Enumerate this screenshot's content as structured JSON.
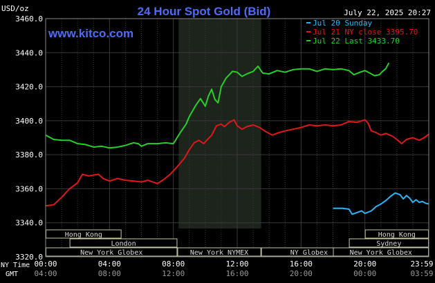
{
  "title": "24 Hour Spot Gold (Bid)",
  "timestamp": "July 22, 2025 20:27",
  "site": "www.kitco.com",
  "ylabel": "USD/oz",
  "ny_time_label": "NY Time",
  "gmt_label": "GMT",
  "colors": {
    "background": "#000000",
    "grid": "#3a3a3a",
    "text": "#ffffff",
    "title": "#4f6cf5",
    "site": "#4f6cf5",
    "session_shade": "#1c241c",
    "market_box_fill": "#000000",
    "market_box_stroke": "#c8c8a0",
    "market_text": "#d8d8d8"
  },
  "markets": [
    {
      "name": "Hong Kong",
      "row": 0
    },
    {
      "name": "London",
      "row": 1
    },
    {
      "name": "New York Globex",
      "row": 2
    },
    {
      "name": "New York NYMEX",
      "row": 2
    },
    {
      "name": "NY Globex",
      "row": 2
    },
    {
      "name": "Hong Kong",
      "row": 0
    },
    {
      "name": "Sydney",
      "row": 1
    },
    {
      "name": "New York Globex",
      "row": 2
    }
  ],
  "chart_data": {
    "type": "line",
    "title": "24 Hour Spot Gold (Bid)",
    "ylabel": "USD/oz",
    "ylim": [
      3320,
      3460
    ],
    "yticks": [
      "3460.0",
      "3440.0",
      "3420.0",
      "3400.0",
      "3380.0",
      "3360.0",
      "3340.0",
      "3320.0"
    ],
    "xlim": [
      0,
      24
    ],
    "xticks_ny": [
      "00:00",
      "04:00",
      "08:00",
      "12:00",
      "16:00",
      "20:00",
      "23:59"
    ],
    "xticks_gmt": [
      "04:00",
      "08:00",
      "12:00",
      "16:00",
      "20:00",
      "00:00",
      "03:59"
    ],
    "legend_position": "top-right",
    "grid": true,
    "series": [
      {
        "name": "Jul 20 Sunday",
        "legend": "Jul 20 Sunday",
        "color": "#29b6f6",
        "points": [
          [
            18.0,
            3348.5
          ],
          [
            18.6,
            3348.5
          ],
          [
            19.0,
            3348.0
          ],
          [
            19.2,
            3345.0
          ],
          [
            19.5,
            3346.0
          ],
          [
            19.8,
            3347.0
          ],
          [
            20.0,
            3345.5
          ],
          [
            20.4,
            3347.0
          ],
          [
            20.7,
            3349.5
          ],
          [
            21.0,
            3351.0
          ],
          [
            21.3,
            3353.0
          ],
          [
            21.6,
            3355.5
          ],
          [
            21.9,
            3357.5
          ],
          [
            22.2,
            3356.5
          ],
          [
            22.4,
            3354.0
          ],
          [
            22.6,
            3356.0
          ],
          [
            22.8,
            3354.5
          ],
          [
            23.0,
            3352.0
          ],
          [
            23.2,
            3353.5
          ],
          [
            23.4,
            3352.0
          ],
          [
            23.6,
            3352.5
          ],
          [
            23.8,
            3351.5
          ],
          [
            24.0,
            3351.0
          ]
        ]
      },
      {
        "name": "Jul 21 NY close 3395.70",
        "legend": "Jul 21 NY close 3395.70",
        "color": "#e01818",
        "points": [
          [
            0.0,
            3350.0
          ],
          [
            0.5,
            3350.5
          ],
          [
            1.0,
            3355.0
          ],
          [
            1.5,
            3360.0
          ],
          [
            2.0,
            3363.5
          ],
          [
            2.3,
            3368.5
          ],
          [
            2.7,
            3367.5
          ],
          [
            3.0,
            3368.0
          ],
          [
            3.3,
            3368.5
          ],
          [
            3.6,
            3366.0
          ],
          [
            4.0,
            3364.5
          ],
          [
            4.5,
            3366.0
          ],
          [
            5.0,
            3365.0
          ],
          [
            5.5,
            3364.5
          ],
          [
            6.0,
            3364.0
          ],
          [
            6.4,
            3365.0
          ],
          [
            6.7,
            3364.0
          ],
          [
            7.0,
            3363.0
          ],
          [
            7.4,
            3365.5
          ],
          [
            7.8,
            3368.5
          ],
          [
            8.2,
            3372.5
          ],
          [
            8.7,
            3378.0
          ],
          [
            9.0,
            3383.0
          ],
          [
            9.3,
            3387.0
          ],
          [
            9.6,
            3388.5
          ],
          [
            9.9,
            3386.5
          ],
          [
            10.2,
            3389.5
          ],
          [
            10.4,
            3391.5
          ],
          [
            10.7,
            3397.0
          ],
          [
            11.0,
            3398.0
          ],
          [
            11.2,
            3396.5
          ],
          [
            11.5,
            3399.0
          ],
          [
            11.8,
            3400.5
          ],
          [
            12.0,
            3397.0
          ],
          [
            12.3,
            3395.0
          ],
          [
            12.6,
            3396.5
          ],
          [
            13.0,
            3397.5
          ],
          [
            13.4,
            3396.0
          ],
          [
            13.8,
            3393.5
          ],
          [
            14.2,
            3391.5
          ],
          [
            14.6,
            3393.0
          ],
          [
            15.0,
            3394.0
          ],
          [
            15.5,
            3395.0
          ],
          [
            16.0,
            3396.0
          ],
          [
            16.5,
            3397.5
          ],
          [
            17.0,
            3397.0
          ],
          [
            17.5,
            3397.5
          ],
          [
            18.0,
            3397.0
          ],
          [
            18.5,
            3397.5
          ],
          [
            19.0,
            3399.5
          ],
          [
            19.5,
            3399.0
          ],
          [
            20.0,
            3400.5
          ],
          [
            20.2,
            3398.5
          ],
          [
            20.4,
            3394.0
          ],
          [
            20.7,
            3393.0
          ],
          [
            21.0,
            3391.5
          ],
          [
            21.3,
            3392.5
          ],
          [
            21.7,
            3391.0
          ],
          [
            22.0,
            3389.0
          ],
          [
            22.3,
            3386.5
          ],
          [
            22.6,
            3389.0
          ],
          [
            23.0,
            3390.0
          ],
          [
            23.4,
            3388.5
          ],
          [
            23.7,
            3390.0
          ],
          [
            24.0,
            3392.0
          ]
        ]
      },
      {
        "name": "Jul 22 Last 3433.70",
        "legend": "Jul 22 Last 3433.70",
        "color": "#27d027",
        "points": [
          [
            0.0,
            3391.5
          ],
          [
            0.5,
            3389.0
          ],
          [
            1.0,
            3388.5
          ],
          [
            1.5,
            3388.5
          ],
          [
            2.0,
            3386.5
          ],
          [
            2.5,
            3386.0
          ],
          [
            3.0,
            3384.5
          ],
          [
            3.5,
            3385.0
          ],
          [
            4.0,
            3384.0
          ],
          [
            4.5,
            3384.5
          ],
          [
            5.0,
            3385.5
          ],
          [
            5.5,
            3387.0
          ],
          [
            5.8,
            3386.5
          ],
          [
            6.0,
            3385.0
          ],
          [
            6.4,
            3386.5
          ],
          [
            7.0,
            3386.5
          ],
          [
            7.5,
            3387.0
          ],
          [
            8.0,
            3386.5
          ],
          [
            8.4,
            3392.5
          ],
          [
            8.8,
            3398.0
          ],
          [
            9.0,
            3402.5
          ],
          [
            9.4,
            3409.0
          ],
          [
            9.7,
            3413.0
          ],
          [
            10.0,
            3408.5
          ],
          [
            10.2,
            3414.5
          ],
          [
            10.4,
            3418.5
          ],
          [
            10.6,
            3412.5
          ],
          [
            10.8,
            3410.5
          ],
          [
            11.0,
            3420.0
          ],
          [
            11.3,
            3425.0
          ],
          [
            11.7,
            3429.0
          ],
          [
            12.0,
            3428.5
          ],
          [
            12.3,
            3426.0
          ],
          [
            12.6,
            3427.5
          ],
          [
            13.0,
            3429.0
          ],
          [
            13.3,
            3432.0
          ],
          [
            13.6,
            3428.0
          ],
          [
            14.0,
            3427.5
          ],
          [
            14.5,
            3429.5
          ],
          [
            15.0,
            3428.5
          ],
          [
            15.5,
            3430.0
          ],
          [
            16.0,
            3430.5
          ],
          [
            16.5,
            3430.5
          ],
          [
            17.0,
            3429.0
          ],
          [
            17.5,
            3430.5
          ],
          [
            18.0,
            3430.0
          ],
          [
            18.5,
            3430.5
          ],
          [
            19.0,
            3429.5
          ],
          [
            19.3,
            3427.0
          ],
          [
            19.7,
            3428.5
          ],
          [
            20.0,
            3429.5
          ],
          [
            20.3,
            3428.0
          ],
          [
            20.6,
            3426.5
          ],
          [
            20.9,
            3427.0
          ],
          [
            21.1,
            3429.0
          ],
          [
            21.3,
            3430.5
          ],
          [
            21.5,
            3434.0
          ]
        ]
      }
    ]
  }
}
